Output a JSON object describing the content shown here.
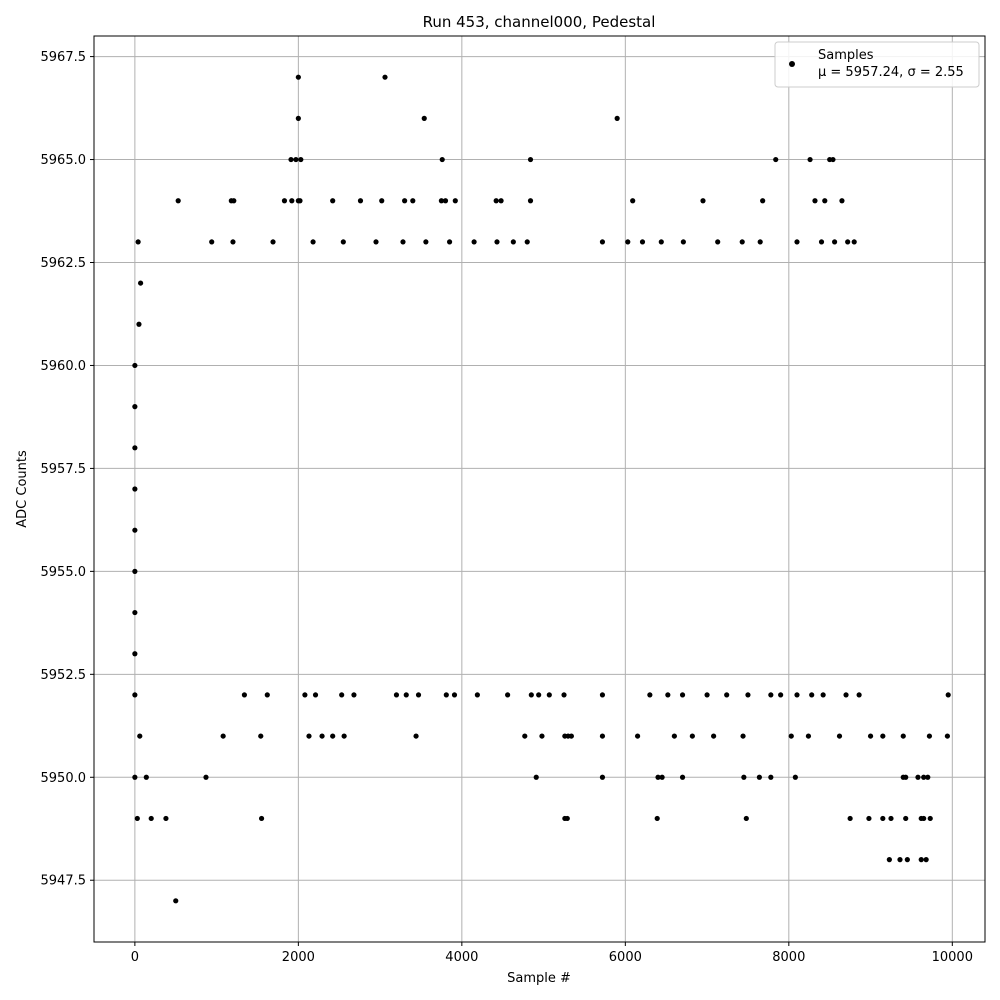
{
  "chart_data": {
    "type": "scatter",
    "title": "Run 453, channel000, Pedestal",
    "xlabel": "Sample #",
    "ylabel": "ADC Counts",
    "xlim": [
      -500,
      10400
    ],
    "ylim": [
      5946,
      5968
    ],
    "xticks": [
      0,
      2000,
      4000,
      6000,
      8000,
      10000
    ],
    "xtick_labels": [
      "0",
      "2000",
      "4000",
      "6000",
      "8000",
      "10000"
    ],
    "yticks": [
      5947.5,
      5950.0,
      5952.5,
      5955.0,
      5957.5,
      5960.0,
      5962.5,
      5965.0,
      5967.5
    ],
    "ytick_labels": [
      "5947.5",
      "5950.0",
      "5952.5",
      "5955.0",
      "5957.5",
      "5960.0",
      "5962.5",
      "5965.0",
      "5967.5"
    ],
    "grid": true,
    "legend_position": "top-right",
    "marker_color": "#000000",
    "series": [
      {
        "name": "Samples",
        "stats_label": "μ = 5957.24, σ = 2.55",
        "points": [
          [
            0,
            5960
          ],
          [
            0,
            5959
          ],
          [
            0,
            5958
          ],
          [
            0,
            5957
          ],
          [
            0,
            5956
          ],
          [
            0,
            5955
          ],
          [
            0,
            5954
          ],
          [
            0,
            5953
          ],
          [
            0,
            5952
          ],
          [
            0,
            5950
          ],
          [
            30,
            5949
          ],
          [
            40,
            5963
          ],
          [
            70,
            5962
          ],
          [
            50,
            5961
          ],
          [
            60,
            5951
          ],
          [
            500,
            5947
          ],
          [
            530,
            5964
          ],
          [
            380,
            5949
          ],
          [
            200,
            5949
          ],
          [
            140,
            5950
          ],
          [
            870,
            5950
          ],
          [
            940,
            5963
          ],
          [
            1180,
            5964
          ],
          [
            1210,
            5964
          ],
          [
            1200,
            5963
          ],
          [
            1550,
            5949
          ],
          [
            1540,
            5951
          ],
          [
            1080,
            5951
          ],
          [
            2000,
            5967
          ],
          [
            2000,
            5966
          ],
          [
            1910,
            5965
          ],
          [
            1970,
            5965
          ],
          [
            2030,
            5965
          ],
          [
            1830,
            5964
          ],
          [
            1920,
            5964
          ],
          [
            2000,
            5964
          ],
          [
            2020,
            5964
          ],
          [
            2420,
            5964
          ],
          [
            2760,
            5964
          ],
          [
            3020,
            5964
          ],
          [
            3060,
            5967
          ],
          [
            3300,
            5964
          ],
          [
            3400,
            5964
          ],
          [
            3540,
            5966
          ],
          [
            3760,
            5965
          ],
          [
            3750,
            5964
          ],
          [
            3800,
            5964
          ],
          [
            3920,
            5964
          ],
          [
            4420,
            5964
          ],
          [
            4480,
            5964
          ],
          [
            4840,
            5965
          ],
          [
            4840,
            5964
          ],
          [
            5900,
            5966
          ],
          [
            6090,
            5964
          ],
          [
            6950,
            5964
          ],
          [
            7680,
            5964
          ],
          [
            7840,
            5965
          ],
          [
            8260,
            5965
          ],
          [
            8320,
            5964
          ],
          [
            8440,
            5964
          ],
          [
            8500,
            5965
          ],
          [
            8540,
            5965
          ],
          [
            8650,
            5964
          ],
          [
            1340,
            5952
          ],
          [
            1620,
            5952
          ],
          [
            2080,
            5952
          ],
          [
            2210,
            5952
          ],
          [
            2530,
            5952
          ],
          [
            2680,
            5952
          ],
          [
            3200,
            5952
          ],
          [
            3320,
            5952
          ],
          [
            3470,
            5952
          ],
          [
            3810,
            5952
          ],
          [
            3910,
            5952
          ],
          [
            4190,
            5952
          ],
          [
            4560,
            5952
          ],
          [
            4850,
            5952
          ],
          [
            4940,
            5952
          ],
          [
            5070,
            5952
          ],
          [
            5250,
            5952
          ],
          [
            5720,
            5952
          ],
          [
            6300,
            5952
          ],
          [
            6520,
            5952
          ],
          [
            6700,
            5952
          ],
          [
            7000,
            5952
          ],
          [
            7240,
            5952
          ],
          [
            7500,
            5952
          ],
          [
            7780,
            5952
          ],
          [
            7900,
            5952
          ],
          [
            8100,
            5952
          ],
          [
            8280,
            5952
          ],
          [
            8420,
            5952
          ],
          [
            8700,
            5952
          ],
          [
            8860,
            5952
          ],
          [
            9950,
            5952
          ],
          [
            2130,
            5951
          ],
          [
            2290,
            5951
          ],
          [
            2420,
            5951
          ],
          [
            2560,
            5951
          ],
          [
            3440,
            5951
          ],
          [
            4770,
            5951
          ],
          [
            4980,
            5951
          ],
          [
            5260,
            5951
          ],
          [
            5300,
            5951
          ],
          [
            5340,
            5951
          ],
          [
            5720,
            5951
          ],
          [
            6150,
            5951
          ],
          [
            6600,
            5951
          ],
          [
            6820,
            5951
          ],
          [
            7080,
            5951
          ],
          [
            7440,
            5951
          ],
          [
            8030,
            5951
          ],
          [
            8240,
            5951
          ],
          [
            8620,
            5951
          ],
          [
            9000,
            5951
          ],
          [
            9150,
            5951
          ],
          [
            9400,
            5951
          ],
          [
            9720,
            5951
          ],
          [
            9940,
            5951
          ],
          [
            4910,
            5950
          ],
          [
            5720,
            5950
          ],
          [
            6400,
            5950
          ],
          [
            6450,
            5950
          ],
          [
            6700,
            5950
          ],
          [
            7450,
            5950
          ],
          [
            7640,
            5950
          ],
          [
            7780,
            5950
          ],
          [
            8080,
            5950
          ],
          [
            9400,
            5950
          ],
          [
            9430,
            5950
          ],
          [
            9580,
            5950
          ],
          [
            9650,
            5950
          ],
          [
            9700,
            5950
          ],
          [
            5260,
            5949
          ],
          [
            5290,
            5949
          ],
          [
            6390,
            5949
          ],
          [
            7480,
            5949
          ],
          [
            8750,
            5949
          ],
          [
            8980,
            5949
          ],
          [
            9150,
            5949
          ],
          [
            9250,
            5949
          ],
          [
            9430,
            5949
          ],
          [
            9620,
            5949
          ],
          [
            9650,
            5949
          ],
          [
            9730,
            5949
          ],
          [
            9230,
            5948
          ],
          [
            9360,
            5948
          ],
          [
            9450,
            5948
          ],
          [
            9620,
            5948
          ],
          [
            9680,
            5948
          ],
          [
            1690,
            5963
          ],
          [
            2180,
            5963
          ],
          [
            2550,
            5963
          ],
          [
            2950,
            5963
          ],
          [
            3280,
            5963
          ],
          [
            3560,
            5963
          ],
          [
            3850,
            5963
          ],
          [
            4150,
            5963
          ],
          [
            4430,
            5963
          ],
          [
            4630,
            5963
          ],
          [
            4800,
            5963
          ],
          [
            5720,
            5963
          ],
          [
            6030,
            5963
          ],
          [
            6210,
            5963
          ],
          [
            6440,
            5963
          ],
          [
            6710,
            5963
          ],
          [
            7130,
            5963
          ],
          [
            7430,
            5963
          ],
          [
            7650,
            5963
          ],
          [
            8100,
            5963
          ],
          [
            8400,
            5963
          ],
          [
            8560,
            5963
          ],
          [
            8720,
            5963
          ],
          [
            8800,
            5963
          ]
        ]
      }
    ]
  }
}
